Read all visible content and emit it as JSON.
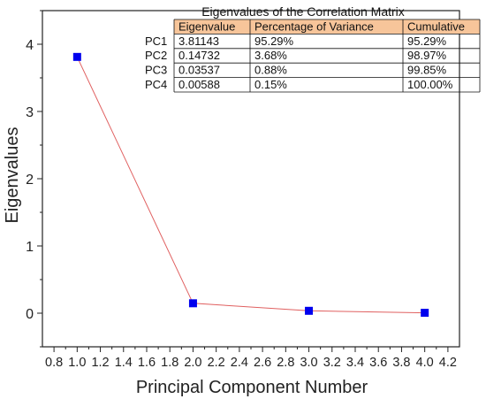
{
  "chart_data": {
    "type": "line",
    "xlabel": "Principal Component Number",
    "ylabel": "Eigenvalues",
    "xlim": [
      0.7,
      4.3
    ],
    "ylim": [
      -0.5,
      4.5
    ],
    "x_ticks": [
      "0.8",
      "1.0",
      "1.2",
      "1.4",
      "1.6",
      "1.8",
      "2.0",
      "2.2",
      "2.4",
      "2.6",
      "2.8",
      "3.0",
      "3.2",
      "3.4",
      "3.6",
      "3.8",
      "4.0",
      "4.2"
    ],
    "y_ticks": [
      "0",
      "1",
      "2",
      "3",
      "4"
    ],
    "grid": false,
    "series": [
      {
        "x": [
          1.0,
          2.0,
          3.0,
          4.0
        ],
        "values": [
          3.81143,
          0.14732,
          0.03537,
          0.00588
        ],
        "marker_color": "#0000ee",
        "line_color": "#e06060"
      }
    ]
  },
  "table": {
    "title": "Eigenvalues of the Correlation Matrix",
    "header_color": "#f7c59a",
    "headers": [
      "Eigenvalue",
      "Percentage of Variance",
      "Cumulative"
    ],
    "rows": [
      {
        "label": "PC1",
        "cells": [
          "3.81143",
          "95.29%",
          "95.29%"
        ]
      },
      {
        "label": "PC2",
        "cells": [
          "0.14732",
          "3.68%",
          "98.97%"
        ]
      },
      {
        "label": "PC3",
        "cells": [
          "0.03537",
          "0.88%",
          "99.85%"
        ]
      },
      {
        "label": "PC4",
        "cells": [
          "0.00588",
          "0.15%",
          "100.00%"
        ]
      }
    ]
  }
}
